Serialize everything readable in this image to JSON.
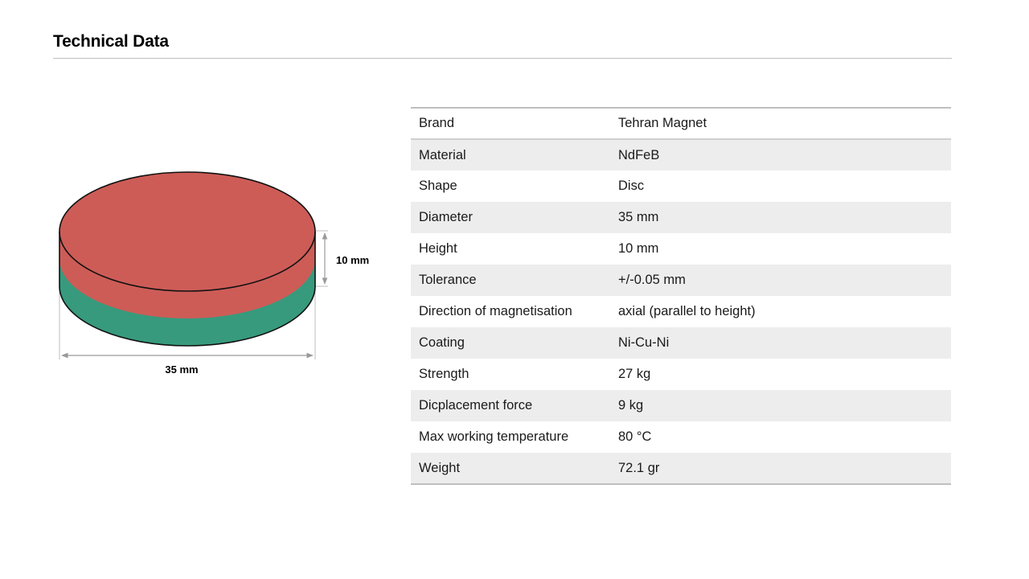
{
  "page": {
    "title": "Technical Data"
  },
  "illustration": {
    "shape": "disc",
    "top_color": "#cd5c57",
    "bottom_color": "#379a7d",
    "height_label": "10 mm",
    "diameter_label": "35 mm"
  },
  "specs": [
    {
      "param": "Brand",
      "value": "Tehran Magnet"
    },
    {
      "param": "Material",
      "value": "NdFeB"
    },
    {
      "param": "Shape",
      "value": "Disc"
    },
    {
      "param": "Diameter",
      "value": "35 mm"
    },
    {
      "param": "Height",
      "value": "10 mm"
    },
    {
      "param": "Tolerance",
      "value": "+/-0.05 mm"
    },
    {
      "param": "Direction of magnetisation",
      "value": "axial (parallel to height)"
    },
    {
      "param": "Coating",
      "value": "Ni-Cu-Ni"
    },
    {
      "param": "Strength",
      "value": "27 kg"
    },
    {
      "param": "Dicplacement force",
      "value": "9 kg"
    },
    {
      "param": "Max working temperature",
      "value": "80 °C"
    },
    {
      "param": "Weight",
      "value": "72.1 gr"
    }
  ]
}
